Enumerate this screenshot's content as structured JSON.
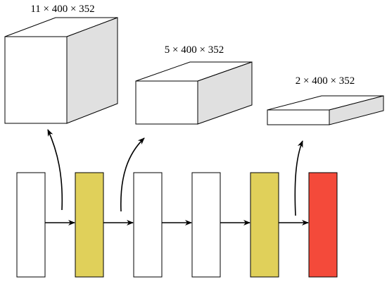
{
  "volumes": [
    {
      "label": "11 × 400 × 352"
    },
    {
      "label": "5 × 400 × 352"
    },
    {
      "label": "2 × 400 × 352"
    }
  ]
}
